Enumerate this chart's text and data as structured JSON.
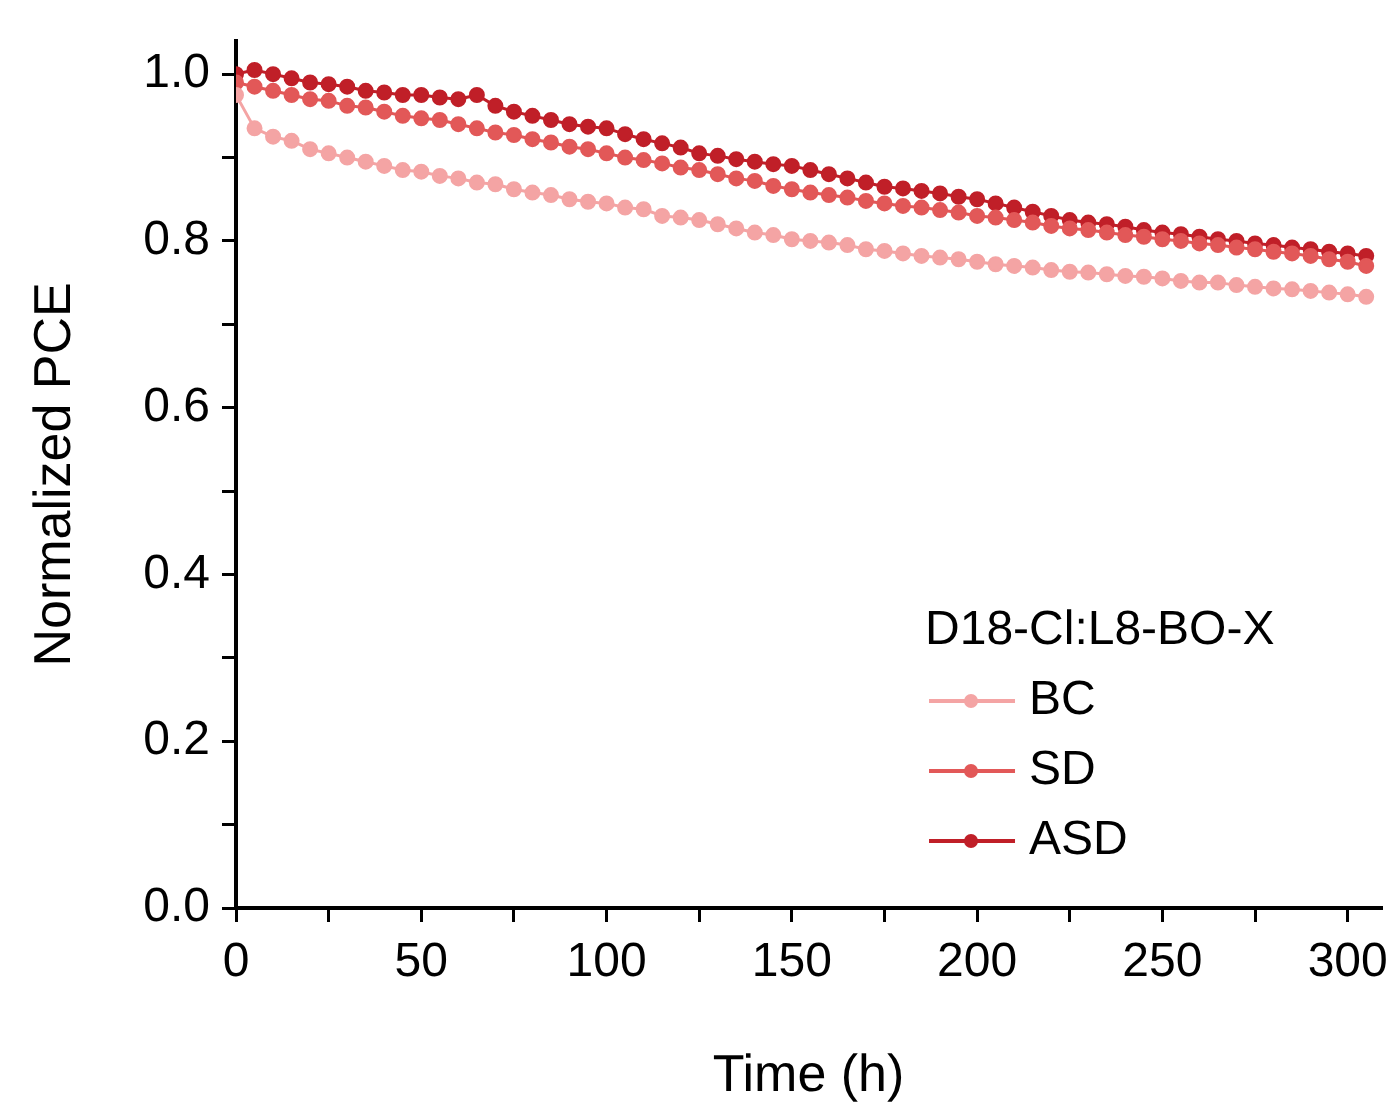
{
  "chart_data": {
    "type": "line",
    "xlabel": "Time (h)",
    "ylabel": "Normalized PCE",
    "legend_title": "D18-Cl:L8-BO-X",
    "legend": "bottom right",
    "grid": false,
    "marker": "circle",
    "line_style": "solid",
    "xlim": [
      0,
      309
    ],
    "ylim": [
      0,
      1.04
    ],
    "xticks": [
      0,
      {
        "value": 25,
        "label": null
      },
      50,
      {
        "value": 75,
        "label": null
      },
      100,
      {
        "value": 125,
        "label": null
      },
      150,
      {
        "value": 175,
        "label": null
      },
      200,
      {
        "value": 225,
        "label": null
      },
      250,
      {
        "value": 275,
        "label": null
      },
      300
    ],
    "yticks": [
      {
        "value": 0,
        "label": "0.0"
      },
      {
        "value": 0.1,
        "label": null
      },
      0.2,
      {
        "value": 0.3,
        "label": null
      },
      0.4,
      {
        "value": 0.5,
        "label": null
      },
      0.6,
      {
        "value": 0.7,
        "label": null
      },
      0.8,
      {
        "value": 0.9,
        "label": null
      },
      {
        "value": 1,
        "label": "1.0"
      }
    ],
    "x": [
      0,
      5,
      10,
      15,
      20,
      25,
      30,
      35,
      40,
      45,
      50,
      55,
      60,
      65,
      70,
      75,
      80,
      85,
      90,
      95,
      100,
      105,
      110,
      115,
      120,
      125,
      130,
      135,
      140,
      145,
      150,
      155,
      160,
      165,
      170,
      175,
      180,
      185,
      190,
      195,
      200,
      205,
      210,
      215,
      220,
      225,
      230,
      235,
      240,
      245,
      250,
      255,
      260,
      265,
      270,
      275,
      280,
      285,
      290,
      295,
      300,
      305
    ],
    "series": [
      {
        "name": "BC",
        "color": "#f4a4a4",
        "values": [
          0.975,
          0.935,
          0.925,
          0.92,
          0.91,
          0.905,
          0.9,
          0.895,
          0.89,
          0.885,
          0.883,
          0.878,
          0.875,
          0.87,
          0.868,
          0.862,
          0.858,
          0.855,
          0.85,
          0.847,
          0.845,
          0.84,
          0.838,
          0.83,
          0.828,
          0.825,
          0.82,
          0.815,
          0.81,
          0.807,
          0.802,
          0.8,
          0.798,
          0.795,
          0.79,
          0.788,
          0.785,
          0.782,
          0.78,
          0.778,
          0.775,
          0.772,
          0.77,
          0.768,
          0.765,
          0.763,
          0.762,
          0.76,
          0.758,
          0.757,
          0.755,
          0.752,
          0.75,
          0.75,
          0.747,
          0.745,
          0.743,
          0.742,
          0.74,
          0.738,
          0.736,
          0.733
        ]
      },
      {
        "name": "SD",
        "color": "#e25858",
        "values": [
          0.99,
          0.985,
          0.98,
          0.975,
          0.97,
          0.968,
          0.962,
          0.96,
          0.955,
          0.95,
          0.947,
          0.945,
          0.94,
          0.935,
          0.93,
          0.927,
          0.922,
          0.918,
          0.913,
          0.91,
          0.905,
          0.9,
          0.897,
          0.893,
          0.888,
          0.885,
          0.88,
          0.875,
          0.872,
          0.866,
          0.862,
          0.858,
          0.855,
          0.852,
          0.848,
          0.845,
          0.842,
          0.84,
          0.837,
          0.834,
          0.83,
          0.828,
          0.825,
          0.822,
          0.818,
          0.815,
          0.813,
          0.81,
          0.807,
          0.805,
          0.802,
          0.8,
          0.797,
          0.795,
          0.792,
          0.79,
          0.787,
          0.785,
          0.782,
          0.778,
          0.775,
          0.77
        ]
      },
      {
        "name": "ASD",
        "color": "#c01f28",
        "values": [
          1.0,
          1.005,
          1.0,
          0.995,
          0.99,
          0.988,
          0.985,
          0.98,
          0.978,
          0.975,
          0.975,
          0.972,
          0.97,
          0.975,
          0.962,
          0.955,
          0.95,
          0.945,
          0.94,
          0.937,
          0.935,
          0.928,
          0.922,
          0.917,
          0.912,
          0.905,
          0.902,
          0.898,
          0.895,
          0.892,
          0.89,
          0.885,
          0.88,
          0.875,
          0.87,
          0.865,
          0.863,
          0.86,
          0.857,
          0.853,
          0.85,
          0.845,
          0.84,
          0.835,
          0.83,
          0.825,
          0.822,
          0.82,
          0.817,
          0.813,
          0.81,
          0.808,
          0.805,
          0.802,
          0.8,
          0.797,
          0.795,
          0.792,
          0.79,
          0.787,
          0.785,
          0.782
        ]
      }
    ]
  }
}
